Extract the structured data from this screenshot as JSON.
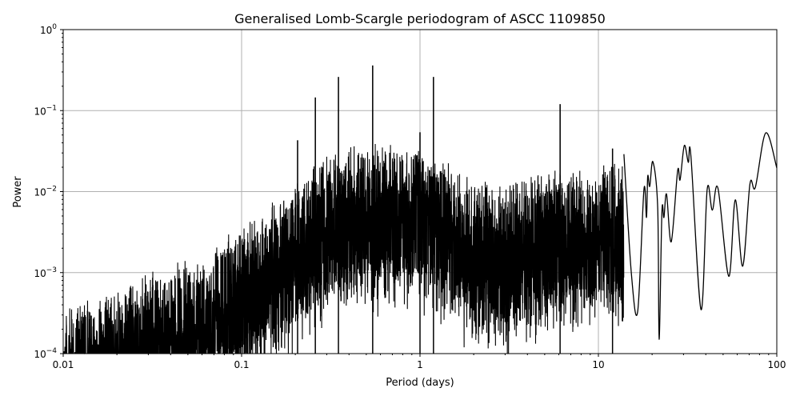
{
  "chart_data": {
    "type": "line",
    "title": "Generalised Lomb-Scargle periodogram of ASCC 1109850",
    "xlabel": "Period (days)",
    "ylabel": "Power",
    "xscale": "log",
    "yscale": "log",
    "xlim": [
      0.01,
      100
    ],
    "ylim": [
      0.0001,
      1
    ],
    "grid": true,
    "line_color": "#000000",
    "grid_color": "#b0b0b0",
    "x_ticks": [
      {
        "value": 0.01,
        "label": "0.01"
      },
      {
        "value": 0.1,
        "label": "0.1"
      },
      {
        "value": 1,
        "label": "1"
      },
      {
        "value": 10,
        "label": "10"
      },
      {
        "value": 100,
        "label": "100"
      }
    ],
    "y_ticks": [
      {
        "value": 0.0001,
        "base": "10",
        "exp": "−4"
      },
      {
        "value": 0.001,
        "base": "10",
        "exp": "−3"
      },
      {
        "value": 0.01,
        "base": "10",
        "exp": "−2"
      },
      {
        "value": 0.1,
        "base": "10",
        "exp": "−1"
      },
      {
        "value": 1,
        "base": "10",
        "exp": "0"
      }
    ],
    "noise_envelope": [
      [
        0.01,
        0.0004
      ],
      [
        0.02,
        0.0006
      ],
      [
        0.03,
        0.001
      ],
      [
        0.05,
        0.0015
      ],
      [
        0.1,
        0.004
      ],
      [
        0.2,
        0.012
      ],
      [
        0.3,
        0.03
      ],
      [
        0.5,
        0.04
      ],
      [
        1,
        0.04
      ],
      [
        2,
        0.015
      ],
      [
        3,
        0.012
      ],
      [
        5,
        0.02
      ],
      [
        8,
        0.02
      ],
      [
        13,
        0.025
      ]
    ],
    "peaks": [
      [
        0.206,
        0.043
      ],
      [
        0.259,
        0.145
      ],
      [
        0.349,
        0.26
      ],
      [
        0.543,
        0.36
      ],
      [
        1.0,
        0.054
      ],
      [
        1.19,
        0.26
      ],
      [
        6.1,
        0.12
      ],
      [
        12.0,
        0.034
      ]
    ],
    "long_period_curve": [
      [
        13.9,
        0.029
      ],
      [
        15.3,
        0.00098
      ],
      [
        16.6,
        0.00033
      ],
      [
        18.0,
        0.0106
      ],
      [
        18.6,
        0.0048
      ],
      [
        18.9,
        0.0155
      ],
      [
        19.4,
        0.0116
      ],
      [
        20.2,
        0.0234
      ],
      [
        21.5,
        0.0063
      ],
      [
        21.9,
        0.00015
      ],
      [
        22.7,
        0.0056
      ],
      [
        23.3,
        0.0048
      ],
      [
        24.1,
        0.0093
      ],
      [
        25.6,
        0.0024
      ],
      [
        27.8,
        0.018
      ],
      [
        28.7,
        0.014
      ],
      [
        30.3,
        0.037
      ],
      [
        31.9,
        0.023
      ],
      [
        33.0,
        0.0275
      ],
      [
        37.6,
        0.00035
      ],
      [
        40.7,
        0.0106
      ],
      [
        43.5,
        0.0059
      ],
      [
        46.8,
        0.011
      ],
      [
        53.8,
        0.0009
      ],
      [
        58.5,
        0.0079
      ],
      [
        64.4,
        0.0012
      ],
      [
        70.7,
        0.0124
      ],
      [
        75.8,
        0.0113
      ],
      [
        86.7,
        0.053
      ],
      [
        100,
        0.0196
      ]
    ]
  }
}
